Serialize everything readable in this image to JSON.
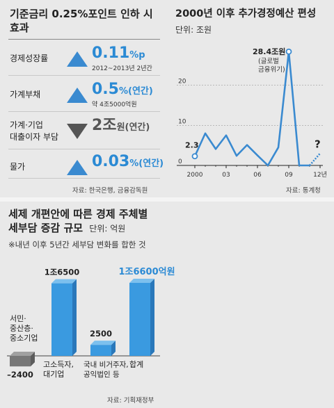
{
  "left_panel": {
    "title_line1": "기준금리 0.25%포인트 인하 시",
    "title_line2": "효과",
    "rows": [
      {
        "label_lines": [
          "경제성장률"
        ],
        "direction": "up",
        "value": "0.11",
        "unit": "%p",
        "note": "2012~2013년 2년간"
      },
      {
        "label_lines": [
          "가계부채"
        ],
        "direction": "up",
        "value": "0.5",
        "unit": "%(연간)",
        "note": "약 4조5000억원"
      },
      {
        "label_lines": [
          "가계·기업",
          "대출이자 부담"
        ],
        "direction": "down",
        "value": "2조",
        "unit": "원(연간)",
        "note": ""
      },
      {
        "label_lines": [
          "물가"
        ],
        "direction": "up",
        "value": "0.03",
        "unit": "%(연간)",
        "note": ""
      }
    ],
    "source": "자료: 한국은행, 금융감독원",
    "colors": {
      "up": "#3a8ad0",
      "down": "#555555",
      "value": "#2b8ad4"
    }
  },
  "right_panel": {
    "title": "2000년 이후 추가경정예산 편성",
    "unit": "단위: 조원",
    "source": "자료: 통계청"
  },
  "bottom_panel": {
    "title_line1": "세제 개편안에 따른 경제 주체별",
    "title_line2": "세부담 증감 규모",
    "unit": "단위: 억원",
    "note": "※내년 이후 5년간 세부담 변화를 합한 것",
    "source": "자료: 기획재정부"
  },
  "chart_data": [
    {
      "type": "line",
      "x": [
        2000,
        2001,
        2002,
        2003,
        2004,
        2005,
        2006,
        2007,
        2008,
        2009,
        2010,
        2011,
        2012
      ],
      "series": [
        {
          "name": "",
          "values": [
            2.3,
            8.0,
            4.1,
            7.5,
            2.4,
            5.1,
            2.5,
            0,
            4.5,
            28.4,
            0,
            0,
            null
          ]
        }
      ],
      "xticks": [
        "2000",
        "03",
        "06",
        "09",
        "12년"
      ],
      "yticks": [
        "0",
        "10",
        "20"
      ],
      "ylim": [
        0,
        30
      ],
      "annotations": [
        {
          "x": 2000,
          "text": "2.3"
        },
        {
          "x": 2009,
          "text": "28.4조원"
        },
        {
          "x": 2009,
          "text": "(글로벌"
        },
        {
          "x": 2009,
          "text": "금융위기)"
        },
        {
          "x": 2012,
          "text": "?"
        }
      ],
      "colors": {
        "line": "#3a8ad0",
        "point_fill": "#ffffff",
        "grid": "#9a9a9a"
      }
    },
    {
      "type": "bar",
      "categories": [
        "서민·중산층·중소기업",
        "고소득자·대기업",
        "국내 비거주자·공익법인 등",
        "합계"
      ],
      "category_labels": [
        [
          "서민·",
          "중산층·",
          "중소기업"
        ],
        [
          "고소득자,",
          "대기업"
        ],
        [
          "국내 비거주자,",
          "공익법인 등"
        ],
        [
          "합계"
        ]
      ],
      "values": [
        -2400,
        16500,
        2500,
        16600
      ],
      "value_labels": [
        "–2400",
        "1조6500",
        "2500",
        "1조6600억원"
      ],
      "colors": {
        "negative": "#777777",
        "positive": "#3a9ae0",
        "total_label": "#2b8ad4"
      }
    }
  ]
}
